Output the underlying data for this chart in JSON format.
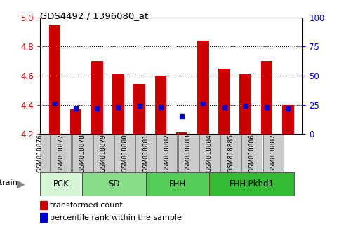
{
  "title": "GDS4492 / 1396080_at",
  "samples": [
    "GSM818876",
    "GSM818877",
    "GSM818878",
    "GSM818879",
    "GSM818880",
    "GSM818881",
    "GSM818882",
    "GSM818883",
    "GSM818884",
    "GSM818885",
    "GSM818886",
    "GSM818887"
  ],
  "transformed_count": [
    4.95,
    4.37,
    4.7,
    4.61,
    4.54,
    4.6,
    4.21,
    4.84,
    4.65,
    4.61,
    4.7,
    4.4
  ],
  "percentile_rank": [
    26,
    22,
    22,
    23,
    24,
    23,
    15,
    26,
    23,
    24,
    23,
    22
  ],
  "ylim_left": [
    4.2,
    5.0
  ],
  "ylim_right": [
    0,
    100
  ],
  "yticks_left": [
    4.2,
    4.4,
    4.6,
    4.8,
    5.0
  ],
  "yticks_right": [
    0,
    25,
    50,
    75,
    100
  ],
  "groups": [
    {
      "label": "PCK",
      "start": 0,
      "end": 2,
      "color": "#d6f5d6"
    },
    {
      "label": "SD",
      "start": 2,
      "end": 5,
      "color": "#88dd88"
    },
    {
      "label": "FHH",
      "start": 5,
      "end": 8,
      "color": "#55cc55"
    },
    {
      "label": "FHH.Pkhd1",
      "start": 8,
      "end": 12,
      "color": "#33bb33"
    }
  ],
  "bar_color": "#cc0000",
  "percentile_color": "#0000cc",
  "bar_bottom": 4.2,
  "bar_width": 0.55,
  "percentile_marker_size": 5,
  "legend_items": [
    {
      "label": "transformed count",
      "color": "#cc0000"
    },
    {
      "label": "percentile rank within the sample",
      "color": "#0000cc"
    }
  ],
  "strain_label": "strain",
  "grid_color": "#000000",
  "background_color": "#ffffff",
  "tick_color_left": "#cc0000",
  "tick_color_right": "#0000cc",
  "xtick_bg_color": "#cccccc",
  "fig_width": 4.93,
  "fig_height": 3.54,
  "dpi": 100
}
